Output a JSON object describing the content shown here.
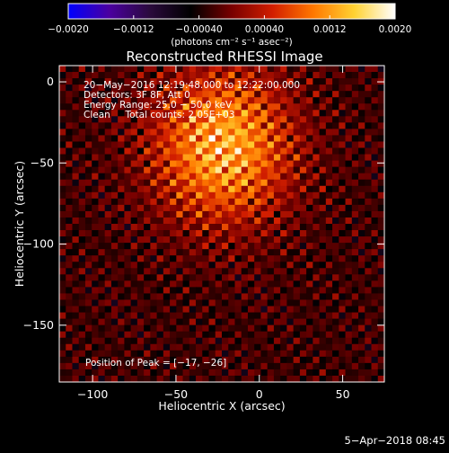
{
  "chart_data": {
    "type": "heatmap",
    "title": "Reconstructed RHESSI Image",
    "xlabel": "Heliocentric X (arcsec)",
    "ylabel": "Heliocentric Y (arcsec)",
    "xlim": [
      -120,
      75
    ],
    "ylim": [
      -185,
      10
    ],
    "x_ticks": [
      -100,
      -50,
      0,
      50
    ],
    "y_ticks": [
      0,
      -50,
      -100,
      -150
    ],
    "grid": false,
    "colorbar": {
      "min": -0.002,
      "max": 0.002,
      "tick_values": [
        -0.002,
        -0.0012,
        -0.0004,
        0.0004,
        0.0012,
        0.002
      ],
      "tick_labels": [
        "−0.0020",
        "−0.0012",
        "−0.00040",
        "0.00040",
        "0.0012",
        "0.0020"
      ],
      "unit_label": "(photons cm⁻² s⁻¹ asec⁻²)",
      "colormap": [
        "#0000ff",
        "#4b00a0",
        "#2a0a3c",
        "#000000",
        "#780000",
        "#d21e00",
        "#ff7800",
        "#ffd232",
        "#ffffff"
      ]
    },
    "annotations": [
      "20−May−2016 12:19:48.000 to 12:22:00.000",
      "Detectors: 3F 8F, Att 0",
      "Energy Range: 25.0 − 50.0 keV",
      "Clean     Total counts: 2.05E+03"
    ],
    "peak_label": "Position of Peak = [−17, −26]",
    "peak": {
      "x": -17,
      "y": -26
    },
    "image_model": {
      "pixel_size_arcsec": 3.9,
      "blob": {
        "x": -22,
        "y": -40,
        "sx": 40,
        "sy": 45,
        "amp": 0.0016
      },
      "offset": -0.00025,
      "fringe_amp": 0.0007
    }
  },
  "footer": {
    "timestamp": "5−Apr−2018 08:45"
  }
}
